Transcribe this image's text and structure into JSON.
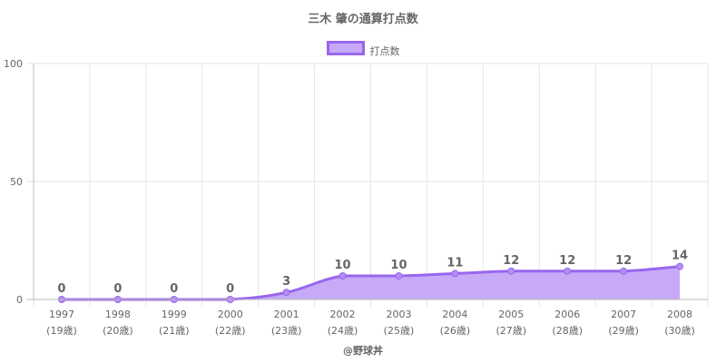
{
  "chart_data": {
    "type": "area",
    "title": "三木 肇の通算打点数",
    "legend": "top-center",
    "series": [
      {
        "name": "打点数",
        "values": [
          0,
          0,
          0,
          0,
          3,
          10,
          10,
          11,
          12,
          12,
          12,
          14
        ]
      }
    ],
    "categories": [
      "1997",
      "1998",
      "1999",
      "2000",
      "2001",
      "2002",
      "2003",
      "2004",
      "2005",
      "2006",
      "2007",
      "2008"
    ],
    "ages": [
      "(19歳)",
      "(20歳)",
      "(21歳)",
      "(22歳)",
      "(23歳)",
      "(24歳)",
      "(25歳)",
      "(26歳)",
      "(27歳)",
      "(28歳)",
      "(29歳)",
      "(30歳)"
    ],
    "ylim": [
      0,
      100
    ],
    "yticks": [
      "0",
      "50",
      "100"
    ],
    "grid": true,
    "colors": {
      "line": "#9966ee",
      "fill": "#c6aaf8",
      "text": "#666666",
      "grid": "#e6e6e6"
    }
  },
  "footer": {
    "credit": "@野球丼"
  }
}
